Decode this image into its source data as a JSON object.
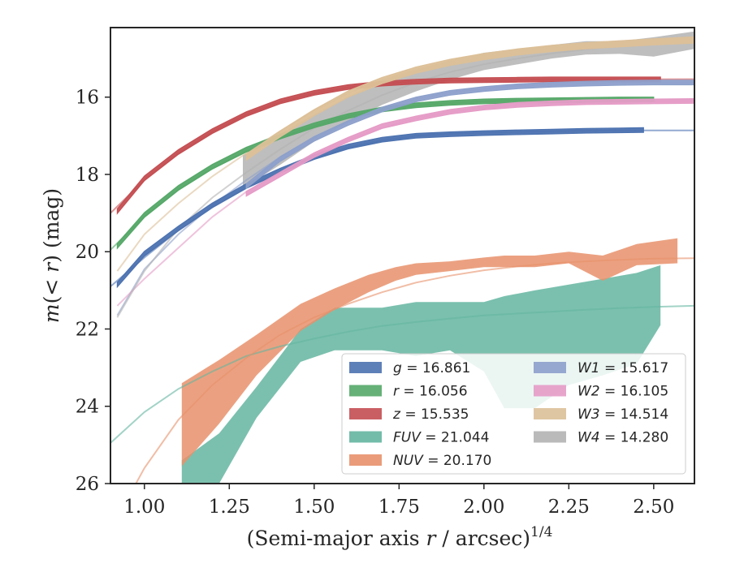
{
  "chart_data": {
    "type": "line",
    "xlabel": "(Semi-major axis r / arcsec)^1/4",
    "ylabel": "m(< r) (mag)",
    "xlim": [
      0.9,
      2.62
    ],
    "ylim": [
      26.0,
      14.2
    ],
    "y_inverted": true,
    "x_ticks": [
      "1.00",
      "1.25",
      "1.50",
      "1.75",
      "2.00",
      "2.25",
      "2.50"
    ],
    "y_ticks": [
      "16",
      "18",
      "20",
      "22",
      "24",
      "26"
    ],
    "grid": false,
    "legend_position": "lower-right",
    "legend_columns": 2,
    "series": [
      {
        "name": "g = 16.861",
        "color": "#4c72b0",
        "fit_x": [
          0.9,
          1.0,
          1.1,
          1.2,
          1.3,
          1.4,
          1.5,
          1.6,
          1.7,
          1.8,
          1.9,
          2.0,
          2.1,
          2.2,
          2.3,
          2.4,
          2.5,
          2.62
        ],
        "fit_y": [
          20.9,
          20.15,
          19.45,
          18.85,
          18.35,
          17.95,
          17.6,
          17.3,
          17.12,
          17.0,
          16.95,
          16.92,
          16.9,
          16.88,
          16.87,
          16.86,
          16.86,
          16.86
        ],
        "profile_x": [
          0.92,
          1.0,
          1.1,
          1.2,
          1.3,
          1.4,
          1.5,
          1.6,
          1.7,
          1.8,
          1.9,
          2.0,
          2.1,
          2.2,
          2.3,
          2.4,
          2.47
        ],
        "profile_y": [
          20.85,
          20.05,
          19.4,
          18.8,
          18.3,
          17.9,
          17.55,
          17.28,
          17.1,
          17.0,
          16.96,
          16.93,
          16.91,
          16.89,
          16.87,
          16.86,
          16.85
        ],
        "profile_band": 0.06
      },
      {
        "name": "r = 16.056",
        "color": "#55a868",
        "fit_x": [
          0.9,
          1.0,
          1.1,
          1.2,
          1.3,
          1.4,
          1.5,
          1.6,
          1.7,
          1.8,
          1.9,
          2.0,
          2.1,
          2.2,
          2.3,
          2.4,
          2.5,
          2.62
        ],
        "fit_y": [
          19.95,
          19.1,
          18.4,
          17.85,
          17.4,
          17.05,
          16.75,
          16.5,
          16.33,
          16.22,
          16.15,
          16.11,
          16.09,
          16.08,
          16.07,
          16.06,
          16.06,
          16.06
        ],
        "profile_x": [
          0.92,
          1.0,
          1.1,
          1.2,
          1.3,
          1.4,
          1.5,
          1.6,
          1.7,
          1.8,
          1.9,
          2.0,
          2.1,
          2.2,
          2.3,
          2.4,
          2.5
        ],
        "profile_y": [
          19.85,
          19.05,
          18.35,
          17.8,
          17.36,
          17.02,
          16.73,
          16.49,
          16.32,
          16.21,
          16.15,
          16.11,
          16.09,
          16.08,
          16.07,
          16.06,
          16.06
        ],
        "profile_band": 0.06
      },
      {
        "name": "z = 15.535",
        "color": "#c44e52",
        "fit_x": [
          0.9,
          1.0,
          1.1,
          1.2,
          1.3,
          1.4,
          1.5,
          1.6,
          1.7,
          1.8,
          1.9,
          2.0,
          2.1,
          2.2,
          2.3,
          2.4,
          2.5,
          2.62
        ],
        "fit_y": [
          19.0,
          18.15,
          17.45,
          16.9,
          16.45,
          16.12,
          15.9,
          15.75,
          15.65,
          15.6,
          15.57,
          15.56,
          15.55,
          15.54,
          15.54,
          15.54,
          15.54,
          15.535
        ],
        "profile_x": [
          0.92,
          1.0,
          1.1,
          1.2,
          1.3,
          1.4,
          1.5,
          1.6,
          1.7,
          1.8,
          1.9,
          2.0,
          2.1,
          2.2,
          2.3,
          2.4,
          2.52
        ],
        "profile_y": [
          18.95,
          18.1,
          17.42,
          16.88,
          16.44,
          16.11,
          15.89,
          15.74,
          15.65,
          15.6,
          15.57,
          15.56,
          15.55,
          15.54,
          15.54,
          15.54,
          15.54
        ],
        "profile_band": 0.06
      },
      {
        "name": "FUV = 21.044",
        "color": "#64b5a0",
        "fit_x": [
          0.9,
          1.0,
          1.1,
          1.2,
          1.3,
          1.4,
          1.5,
          1.6,
          1.7,
          1.8,
          1.9,
          2.0,
          2.1,
          2.2,
          2.3,
          2.4,
          2.5,
          2.62
        ],
        "fit_y": [
          24.95,
          24.15,
          23.55,
          23.1,
          22.7,
          22.45,
          22.25,
          22.07,
          21.92,
          21.82,
          21.73,
          21.65,
          21.6,
          21.55,
          21.5,
          21.46,
          21.43,
          21.4
        ],
        "band_x": [
          1.11,
          1.22,
          1.33,
          1.46,
          1.56,
          1.7,
          1.8,
          1.9,
          2.0,
          2.06,
          2.15,
          2.25,
          2.35,
          2.45,
          2.52
        ],
        "band_upper": [
          25.4,
          24.7,
          23.5,
          22.0,
          21.45,
          21.45,
          21.3,
          21.3,
          21.3,
          21.15,
          21.0,
          20.85,
          20.7,
          20.55,
          20.35
        ],
        "band_lower": [
          26.4,
          26.0,
          24.3,
          22.85,
          22.55,
          22.55,
          22.7,
          22.55,
          23.1,
          24.05,
          24.05,
          23.45,
          23.2,
          22.9,
          21.9
        ]
      },
      {
        "name": "NUV = 20.170",
        "color": "#e8916b",
        "fit_x": [
          0.95,
          1.0,
          1.1,
          1.2,
          1.3,
          1.4,
          1.5,
          1.6,
          1.7,
          1.8,
          1.9,
          2.0,
          2.1,
          2.2,
          2.3,
          2.4,
          2.5,
          2.62
        ],
        "fit_y": [
          26.4,
          25.6,
          24.35,
          23.45,
          22.75,
          22.15,
          21.7,
          21.35,
          21.05,
          20.8,
          20.62,
          20.48,
          20.38,
          20.3,
          20.25,
          20.21,
          20.18,
          20.17
        ],
        "band_x": [
          1.11,
          1.22,
          1.33,
          1.46,
          1.56,
          1.66,
          1.74,
          1.8,
          1.9,
          2.0,
          2.06,
          2.15,
          2.25,
          2.35,
          2.45,
          2.57
        ],
        "band_upper": [
          23.4,
          22.8,
          22.15,
          21.35,
          20.95,
          20.6,
          20.4,
          20.3,
          20.25,
          20.15,
          20.1,
          20.1,
          20.0,
          20.1,
          19.8,
          19.65
        ],
        "band_lower": [
          25.55,
          24.45,
          23.2,
          22.05,
          21.5,
          21.05,
          20.75,
          20.6,
          20.5,
          20.4,
          20.4,
          20.4,
          20.3,
          20.75,
          20.35,
          20.3
        ]
      },
      {
        "name": "W1 = 15.617",
        "color": "#8da0cb",
        "fit_x": [
          0.92,
          1.0,
          1.1,
          1.2,
          1.3,
          1.4,
          1.5,
          1.6,
          1.7,
          1.8,
          1.9,
          2.0,
          2.1,
          2.2,
          2.3,
          2.4,
          2.5,
          2.62
        ],
        "fit_y": [
          21.65,
          20.45,
          19.55,
          18.8,
          18.15,
          17.55,
          17.05,
          16.65,
          16.3,
          16.05,
          15.88,
          15.78,
          15.71,
          15.67,
          15.65,
          15.63,
          15.62,
          15.617
        ],
        "profile_x": [
          1.3,
          1.4,
          1.5,
          1.6,
          1.7,
          1.8,
          1.9,
          2.0,
          2.1,
          2.2,
          2.3,
          2.4,
          2.5,
          2.62
        ],
        "profile_y": [
          18.3,
          17.6,
          17.08,
          16.67,
          16.32,
          16.06,
          15.89,
          15.79,
          15.72,
          15.68,
          15.65,
          15.63,
          15.62,
          15.62
        ],
        "profile_band": 0.06
      },
      {
        "name": "W2 = 16.105",
        "color": "#e59bc6",
        "fit_x": [
          0.92,
          1.0,
          1.1,
          1.2,
          1.3,
          1.4,
          1.5,
          1.6,
          1.7,
          1.8,
          1.9,
          2.0,
          2.1,
          2.2,
          2.3,
          2.4,
          2.5,
          2.62
        ],
        "fit_y": [
          21.4,
          20.7,
          19.9,
          19.1,
          18.45,
          17.95,
          17.5,
          17.1,
          16.8,
          16.55,
          16.38,
          16.27,
          16.2,
          16.16,
          16.13,
          16.12,
          16.11,
          16.105
        ],
        "profile_x": [
          1.3,
          1.4,
          1.5,
          1.6,
          1.7,
          1.8,
          1.9,
          2.0,
          2.1,
          2.2,
          2.3,
          2.4,
          2.5,
          2.62
        ],
        "profile_y": [
          18.5,
          18.0,
          17.5,
          17.1,
          16.75,
          16.55,
          16.38,
          16.27,
          16.2,
          16.16,
          16.13,
          16.12,
          16.11,
          16.1
        ],
        "profile_band": 0.06
      },
      {
        "name": "W3 = 14.514",
        "color": "#dcc098",
        "fit_x": [
          0.92,
          1.0,
          1.1,
          1.2,
          1.3,
          1.4,
          1.5,
          1.6,
          1.7,
          1.8,
          1.9,
          2.0,
          2.1,
          2.2,
          2.3,
          2.4,
          2.5,
          2.62
        ],
        "fit_y": [
          20.5,
          19.55,
          18.75,
          18.05,
          17.45,
          16.88,
          16.35,
          15.9,
          15.55,
          15.28,
          15.08,
          14.93,
          14.82,
          14.73,
          14.66,
          14.6,
          14.56,
          14.514
        ],
        "profile_x": [
          1.3,
          1.4,
          1.5,
          1.6,
          1.7,
          1.8,
          1.9,
          2.0,
          2.1,
          2.2,
          2.3,
          2.4,
          2.5,
          2.62
        ],
        "profile_y": [
          17.55,
          16.95,
          16.4,
          15.92,
          15.57,
          15.3,
          15.1,
          14.95,
          14.83,
          14.74,
          14.67,
          14.62,
          14.57,
          14.52
        ],
        "profile_band": 0.08
      },
      {
        "name": "W4 = 14.280",
        "color": "#b3b3b3",
        "fit_x": [
          0.92,
          1.0,
          1.1,
          1.2,
          1.3,
          1.4,
          1.5,
          1.6,
          1.7,
          1.8,
          1.9,
          2.0,
          2.1,
          2.2,
          2.3,
          2.4,
          2.5,
          2.62
        ],
        "fit_y": [
          21.7,
          20.5,
          19.4,
          18.6,
          17.95,
          17.35,
          16.8,
          16.35,
          15.95,
          15.62,
          15.35,
          15.15,
          15.0,
          14.87,
          14.76,
          14.67,
          14.6,
          14.54
        ],
        "band_x": [
          1.29,
          1.4,
          1.5,
          1.6,
          1.7,
          1.8,
          1.9,
          2.0,
          2.1,
          2.2,
          2.3,
          2.4,
          2.5,
          2.62
        ],
        "band_upper": [
          17.5,
          16.95,
          16.45,
          16.0,
          15.55,
          15.3,
          15.05,
          14.85,
          14.75,
          14.65,
          14.55,
          14.55,
          14.45,
          14.3
        ],
        "band_lower": [
          18.35,
          17.75,
          17.15,
          16.65,
          16.2,
          15.85,
          15.55,
          15.3,
          15.15,
          15.0,
          14.9,
          14.88,
          14.95,
          14.75
        ]
      }
    ]
  }
}
